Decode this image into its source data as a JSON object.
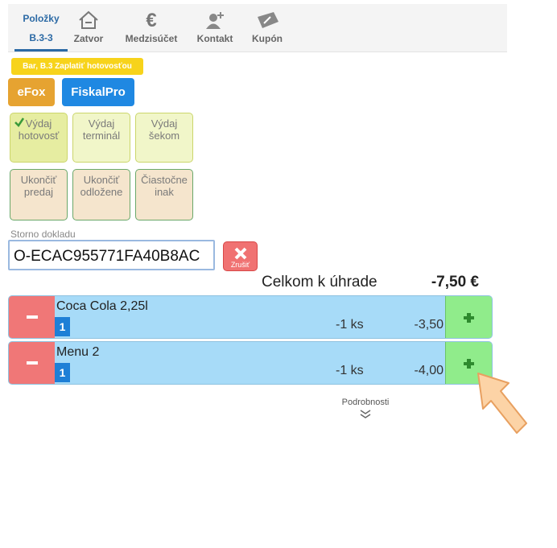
{
  "tabs": [
    {
      "label": "Položky",
      "sub": "B.3-3"
    },
    {
      "label": "Zatvor"
    },
    {
      "label": "Medzisúčet"
    },
    {
      "label": "Kontakt"
    },
    {
      "label": "Kupón"
    }
  ],
  "badge": "Bar, B.3 Zaplatiť hotovosťou",
  "buttons": [
    "eFox",
    "FiskalPro"
  ],
  "options": [
    [
      "Výdaj",
      "hotovosť"
    ],
    [
      "Výdaj",
      "terminál"
    ],
    [
      "Výdaj",
      "šekom"
    ],
    [
      "Ukončiť",
      "predaj"
    ],
    [
      "Ukončiť",
      "odložene"
    ],
    [
      "Čiastočne",
      "inak"
    ]
  ],
  "storno": {
    "label": "Storno dokladu",
    "value": "O-ECAC955771FA40B8AC",
    "cancel": "Zrušiť"
  },
  "total": {
    "label": "Celkom k úhrade",
    "value": "-7,50 €"
  },
  "items": [
    {
      "name": "Coca Cola 2,25l",
      "badge": "1",
      "qty": "-1 ks",
      "price": "-3,50"
    },
    {
      "name": "Menu 2",
      "badge": "1",
      "qty": "-1 ks",
      "price": "-4,00"
    }
  ],
  "details": "Podrobnosti"
}
